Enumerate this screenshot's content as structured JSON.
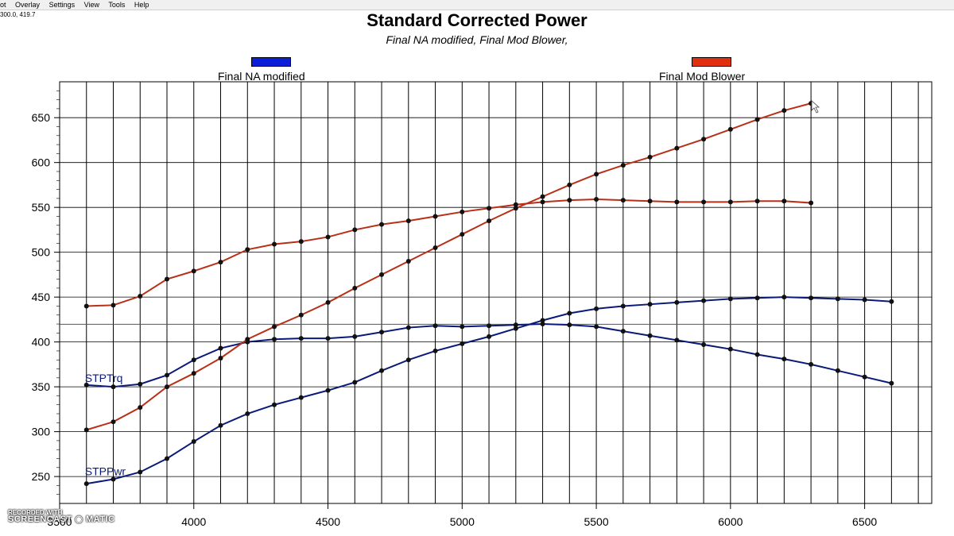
{
  "menu": [
    "ot",
    "Overlay",
    "Settings",
    "View",
    "Tools",
    "Help"
  ],
  "cursor_readout": "300.0, 419.7",
  "watermark": {
    "line1": "RECORDED WITH",
    "line2": "SCREENCAST",
    "line3": "MATIC"
  },
  "colors": {
    "na": "#0a1a78",
    "blower": "#b83018",
    "na_swatch": "#0b1fd8",
    "blower_swatch": "#e03010"
  },
  "chart_data": {
    "type": "line",
    "title": "Standard Corrected Power",
    "subtitle": "Final NA modified, Final Mod Blower,",
    "xlabel": "",
    "ylabel": "",
    "xlim": [
      3500,
      6750
    ],
    "ylim": [
      220,
      690
    ],
    "xticks": [
      3500,
      4000,
      4500,
      5000,
      5500,
      6000,
      6500
    ],
    "xtick_labels": [
      "3500",
      "4000",
      "4500",
      "5000",
      "5500",
      "6000",
      "6500"
    ],
    "yticks": [
      250,
      300,
      350,
      400,
      450,
      500,
      550,
      600,
      650
    ],
    "grid": true,
    "legend": [
      {
        "name": "Final NA modified",
        "color": "#0b1fd8"
      },
      {
        "name": "Final Mod Blower",
        "color": "#e03010"
      }
    ],
    "annotations": [
      {
        "text": "STPTrq",
        "x": 3600,
        "y": 352
      },
      {
        "text": "STPPwr",
        "x": 3600,
        "y": 248
      }
    ],
    "cursor_line_y": 419.7,
    "series": [
      {
        "group": "Final NA modified",
        "color": "#0a1a78",
        "x": [
          3600,
          3700,
          3800,
          3900,
          4000,
          4100,
          4200,
          4300,
          4400,
          4500,
          4600,
          4700,
          4800,
          4900,
          5000,
          5100,
          5200,
          5300,
          5400,
          5500,
          5600,
          5700,
          5800,
          5900,
          6000,
          6100,
          6200,
          6300,
          6400,
          6500,
          6600
        ],
        "y": [
          352,
          350,
          353,
          363,
          380,
          393,
          400,
          403,
          404,
          404,
          406,
          411,
          416,
          418,
          417,
          418,
          419,
          420,
          419,
          417,
          412,
          407,
          402,
          397,
          392,
          386,
          381,
          375,
          368,
          361,
          354
        ]
      },
      {
        "group": "Final NA modified",
        "color": "#0a1a78",
        "x": [
          3600,
          3700,
          3800,
          3900,
          4000,
          4100,
          4200,
          4300,
          4400,
          4500,
          4600,
          4700,
          4800,
          4900,
          5000,
          5100,
          5200,
          5300,
          5400,
          5500,
          5600,
          5700,
          5800,
          5900,
          6000,
          6100,
          6200,
          6300,
          6400,
          6500,
          6600
        ],
        "y": [
          242,
          247,
          255,
          270,
          289,
          307,
          320,
          330,
          338,
          346,
          355,
          368,
          380,
          390,
          398,
          406,
          415,
          424,
          432,
          437,
          440,
          442,
          444,
          446,
          448,
          449,
          450,
          449,
          448,
          447,
          445
        ]
      },
      {
        "group": "Final Mod Blower",
        "color": "#b83018",
        "x": [
          3600,
          3700,
          3800,
          3900,
          4000,
          4100,
          4200,
          4300,
          4400,
          4500,
          4600,
          4700,
          4800,
          4900,
          5000,
          5100,
          5200,
          5300,
          5400,
          5500,
          5600,
          5700,
          5800,
          5900,
          6000,
          6100,
          6200,
          6300
        ],
        "y": [
          440,
          441,
          451,
          470,
          479,
          489,
          503,
          509,
          512,
          517,
          525,
          531,
          535,
          540,
          545,
          549,
          553,
          556,
          558,
          559,
          558,
          557,
          556,
          556,
          556,
          557,
          557,
          555
        ]
      },
      {
        "group": "Final Mod Blower",
        "color": "#b83018",
        "x": [
          3600,
          3700,
          3800,
          3900,
          4000,
          4100,
          4200,
          4300,
          4400,
          4500,
          4600,
          4700,
          4800,
          4900,
          5000,
          5100,
          5200,
          5300,
          5400,
          5500,
          5600,
          5700,
          5800,
          5900,
          6000,
          6100,
          6200,
          6300
        ],
        "y": [
          302,
          311,
          327,
          350,
          365,
          382,
          403,
          417,
          430,
          444,
          460,
          475,
          490,
          505,
          520,
          535,
          549,
          562,
          575,
          587,
          597,
          606,
          616,
          626,
          637,
          648,
          658,
          666
        ]
      }
    ]
  }
}
